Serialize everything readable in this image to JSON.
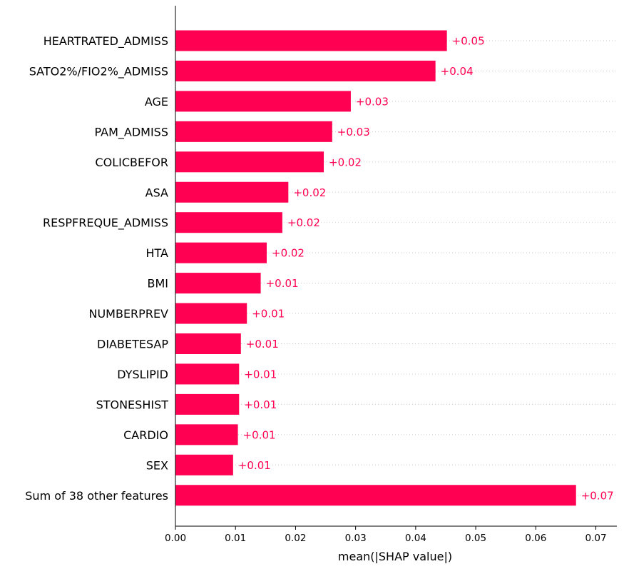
{
  "chart_data": {
    "type": "bar",
    "orientation": "horizontal",
    "categories": [
      "HEARTRATED_ADMISS",
      "SATO2%/FIO2%_ADMISS",
      "AGE",
      "PAM_ADMISS",
      "COLICBEFOR",
      "ASA",
      "RESPFREQUE_ADMISS",
      "HTA",
      "BMI",
      "NUMBERPREV",
      "DIABETESAP",
      "DYSLIPID",
      "STONESHIST",
      "CARDIO",
      "SEX",
      "Sum of 38 other features"
    ],
    "values": [
      0.0452,
      0.0433,
      0.0292,
      0.0261,
      0.0247,
      0.0188,
      0.0178,
      0.0152,
      0.0142,
      0.0119,
      0.0109,
      0.0106,
      0.0106,
      0.0104,
      0.0096,
      0.0667
    ],
    "value_labels": [
      "+0.05",
      "+0.04",
      "+0.03",
      "+0.03",
      "+0.02",
      "+0.02",
      "+0.02",
      "+0.02",
      "+0.01",
      "+0.01",
      "+0.01",
      "+0.01",
      "+0.01",
      "+0.01",
      "+0.01",
      "+0.07"
    ],
    "xlabel": "mean(|SHAP value|)",
    "ylabel": "",
    "title": "",
    "xlim": [
      0,
      0.0735
    ],
    "xticks": [
      0,
      0.01,
      0.02,
      0.03,
      0.04,
      0.05,
      0.06,
      0.07
    ],
    "xtick_labels": [
      "0.00",
      "0.01",
      "0.02",
      "0.03",
      "0.04",
      "0.05",
      "0.06",
      "0.07"
    ],
    "grid": "dotted horizontal guides per row",
    "colors": {
      "bar": "#ff0052",
      "value_text": "#ff0052",
      "axis": "#000000",
      "grid": "#cccccc"
    }
  }
}
